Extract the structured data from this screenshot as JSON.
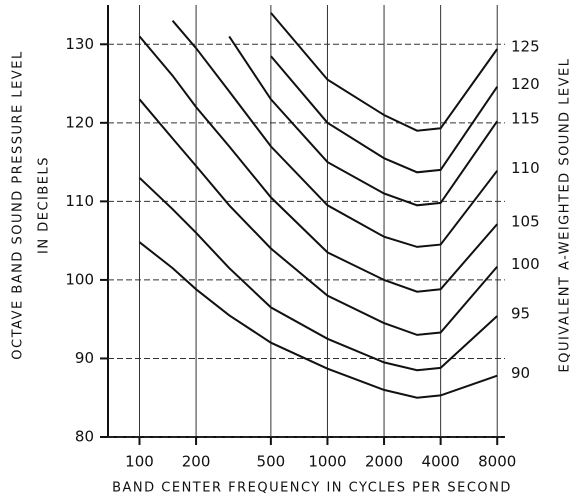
{
  "chart_data": {
    "type": "line",
    "y_title": [
      "OCTAVE BAND SOUND PRESSURE LEVEL",
      "IN DECIBELS"
    ],
    "y2_title": "EQUIVALENT A-WEIGHTED SOUND LEVEL",
    "x_title": "BAND CENTER FREQUENCY IN CYCLES PER SECOND",
    "x": [
      100,
      150,
      200,
      300,
      500,
      1000,
      2000,
      3000,
      4000,
      8000
    ],
    "xlim": [
      68,
      8800
    ],
    "xticks": [
      100,
      200,
      500,
      1000,
      2000,
      4000,
      8000
    ],
    "xscale": "log",
    "ylim": [
      80,
      135
    ],
    "yticks": [
      80,
      90,
      100,
      110,
      120,
      130
    ],
    "grid": true,
    "color": "#111111",
    "series": [
      {
        "name": "90",
        "values": [
          104.8,
          101.5,
          98.8,
          95.5,
          92,
          88.7,
          86,
          85,
          85.3,
          87.8
        ]
      },
      {
        "name": "95",
        "values": [
          113,
          109,
          106,
          101.5,
          96.5,
          92.5,
          89.5,
          88.5,
          88.8,
          95.4
        ]
      },
      {
        "name": "100",
        "values": [
          123,
          118,
          114.5,
          109.5,
          104,
          98,
          94.5,
          93,
          93.3,
          101.7
        ]
      },
      {
        "name": "105",
        "values": [
          131,
          126,
          122,
          117,
          110.5,
          103.5,
          100,
          98.5,
          98.8,
          107.1
        ]
      },
      {
        "name": "110",
        "values": [
          null,
          133,
          129.5,
          124,
          117,
          109.5,
          105.5,
          104.2,
          104.5,
          113.9
        ]
      },
      {
        "name": "115",
        "values": [
          null,
          null,
          null,
          131,
          123,
          115,
          111,
          109.5,
          109.8,
          120.2
        ]
      },
      {
        "name": "120",
        "values": [
          null,
          null,
          null,
          null,
          128.5,
          120,
          115.5,
          113.7,
          114,
          124.6
        ]
      },
      {
        "name": "125",
        "values": [
          null,
          null,
          null,
          null,
          134,
          125.5,
          121,
          119,
          119.3,
          129.4
        ]
      }
    ]
  }
}
